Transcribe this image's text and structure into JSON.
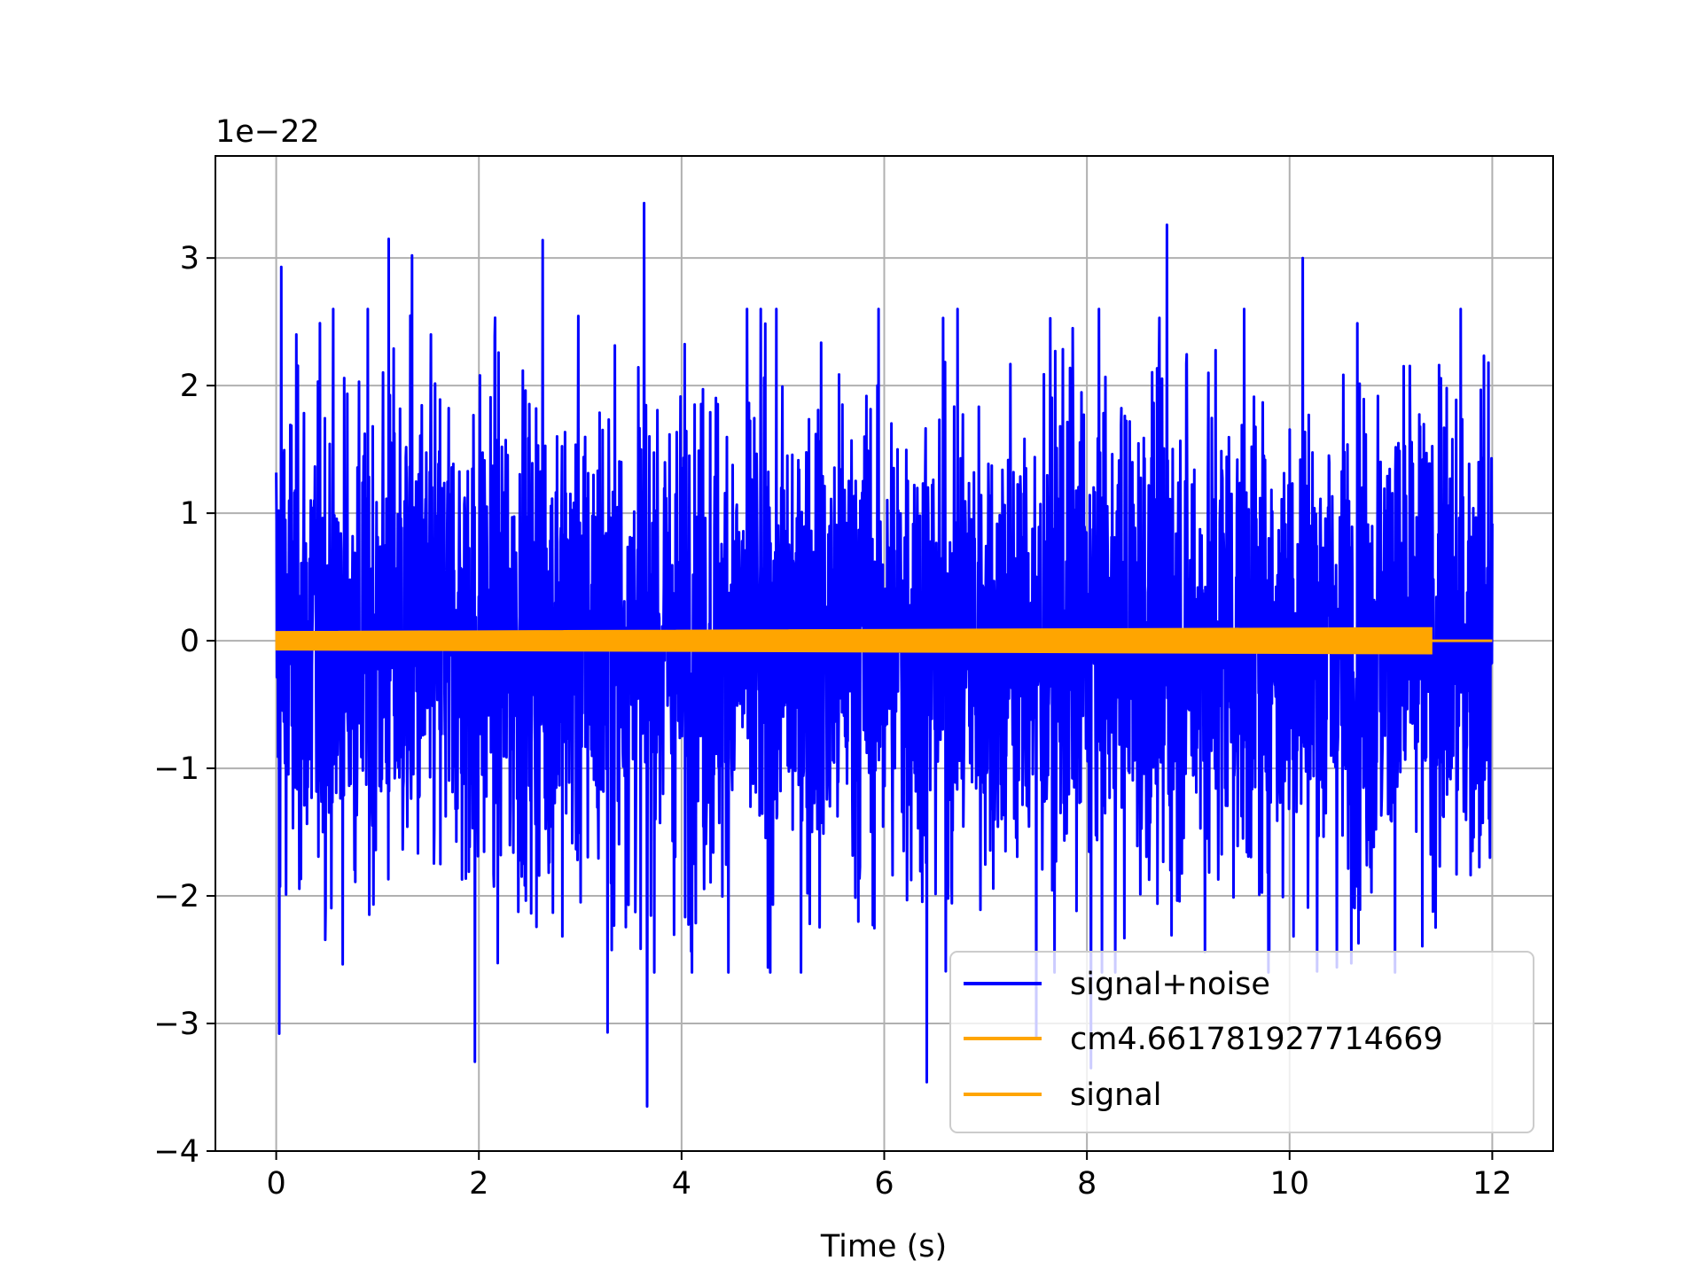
{
  "chart_data": {
    "type": "line",
    "title": "",
    "xlabel": "Time (s)",
    "ylabel": "",
    "offset_text": "1e−22",
    "xlim": [
      -0.6,
      12.6
    ],
    "ylim": [
      -4.0,
      3.8
    ],
    "x_ticks": [
      0,
      2,
      4,
      6,
      8,
      10,
      12
    ],
    "x_tick_labels": [
      "0",
      "2",
      "4",
      "6",
      "8",
      "10",
      "12"
    ],
    "y_ticks": [
      -4,
      -3,
      -2,
      -1,
      0,
      1,
      2,
      3
    ],
    "y_tick_labels": [
      "−4",
      "−3",
      "−2",
      "−1",
      "0",
      "1",
      "2",
      "3"
    ],
    "grid": true,
    "legend_position": "lower-right",
    "series": [
      {
        "name": "signal+noise",
        "color": "#0000ff",
        "kind": "noise",
        "x_range": [
          0,
          12
        ],
        "typical_envelope": [
          -1.8,
          1.8
        ],
        "peaks": [
          {
            "x": 0.05,
            "y": 2.93
          },
          {
            "x": 0.03,
            "y": -3.08
          },
          {
            "x": 1.11,
            "y": 3.15
          },
          {
            "x": 1.34,
            "y": 3.02
          },
          {
            "x": 1.96,
            "y": -3.3
          },
          {
            "x": 2.63,
            "y": 3.14
          },
          {
            "x": 3.27,
            "y": -3.07
          },
          {
            "x": 3.63,
            "y": 3.43
          },
          {
            "x": 3.66,
            "y": -3.65
          },
          {
            "x": 8.79,
            "y": 3.26
          },
          {
            "x": 10.13,
            "y": 3.0
          },
          {
            "x": 6.42,
            "y": -3.46
          },
          {
            "x": 8.04,
            "y": -3.35
          },
          {
            "x": 7.5,
            "y": -3.1
          }
        ]
      },
      {
        "name": "cm4.661781927714669",
        "color": "#ffa500",
        "kind": "chirp",
        "x_range": [
          0,
          11.4
        ],
        "amplitude_start": 0.03,
        "amplitude_end": 0.1
      },
      {
        "name": "signal",
        "color": "#ffa500",
        "kind": "flat",
        "x_range": [
          11.4,
          12
        ],
        "value": 0.0
      }
    ]
  },
  "legend": {
    "entries": [
      "signal+noise",
      "cm4.661781927714669",
      "signal"
    ]
  }
}
